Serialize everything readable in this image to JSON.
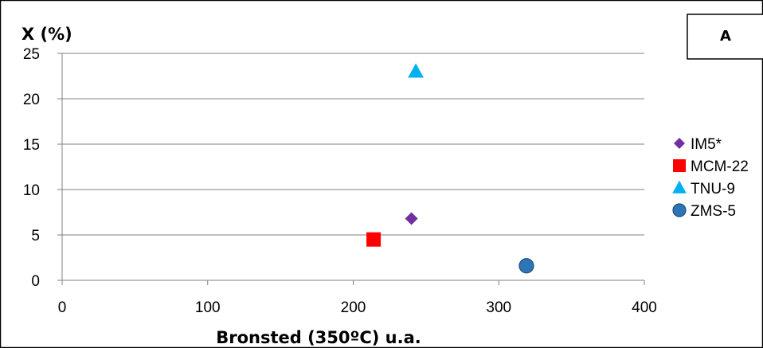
{
  "panel_label": "A",
  "chart_data": {
    "type": "scatter",
    "ylabel": "X (%)",
    "xlabel": "Bronsted (350ºC) u.a.",
    "xlim": [
      0,
      400
    ],
    "ylim": [
      0,
      25
    ],
    "xticks": [
      "0",
      "100",
      "200",
      "300",
      "400"
    ],
    "yticks": [
      "0",
      "5",
      "10",
      "15",
      "20",
      "25"
    ],
    "grid": "horizontal",
    "legend_position": "right",
    "series": [
      {
        "name": "IM5*",
        "marker": "diamond",
        "color": "#7030a0",
        "points": [
          {
            "x": 240,
            "y": 6.8
          }
        ]
      },
      {
        "name": "MCM-22",
        "marker": "square",
        "color": "#ff0000",
        "points": [
          {
            "x": 214,
            "y": 4.5
          }
        ]
      },
      {
        "name": "TNU-9",
        "marker": "triangle",
        "color": "#00b0f0",
        "points": [
          {
            "x": 243,
            "y": 23.0
          }
        ]
      },
      {
        "name": "ZMS-5",
        "marker": "circle",
        "color": "#2e75b6",
        "points": [
          {
            "x": 319,
            "y": 1.6
          }
        ]
      }
    ]
  }
}
